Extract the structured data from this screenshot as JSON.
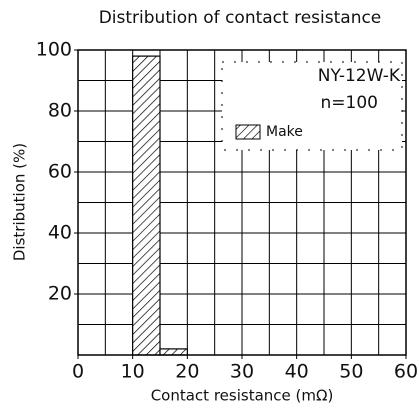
{
  "chart_data": {
    "type": "histogram",
    "title": "Distribution of contact resistance",
    "xlabel": "Contact resistance (mΩ)",
    "ylabel": "Distribution (%)",
    "annotations": [
      "NY-12W-K",
      "n=100"
    ],
    "bins": [
      10,
      15,
      20
    ],
    "series": [
      {
        "name": "Make",
        "color": "#000000",
        "values": [
          98,
          2
        ]
      }
    ],
    "xlim": [
      0,
      60
    ],
    "xticks": [
      0,
      10,
      20,
      30,
      40,
      50,
      60
    ],
    "ylim": [
      0,
      100
    ],
    "yticks": [
      20,
      40,
      60,
      80,
      100
    ],
    "grid": true,
    "x_grid": [
      5,
      10,
      15,
      20,
      25,
      30,
      35,
      40,
      45,
      50,
      55
    ],
    "y_grid": [
      10,
      20,
      30,
      40,
      50,
      60,
      70,
      80,
      90
    ],
    "legend": "upper right"
  }
}
